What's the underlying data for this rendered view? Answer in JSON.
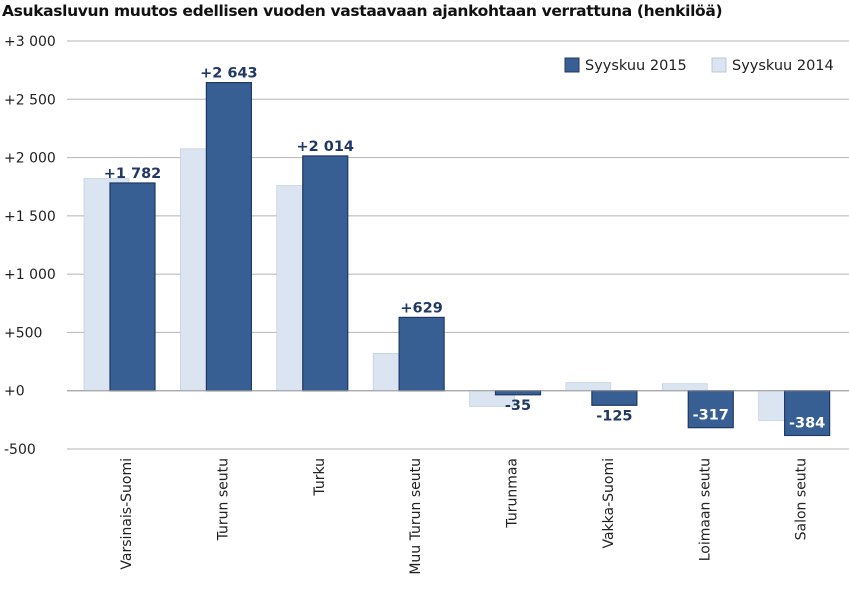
{
  "chart_data": {
    "type": "bar",
    "title": "Asukasluvun muutos edellisen vuoden vastaavaan ajankohtaan verrattuna (henkilöä)",
    "xlabel": "",
    "ylabel": "",
    "ylim": [
      -500,
      3000
    ],
    "yticks": [
      -500,
      0,
      500,
      1000,
      1500,
      2000,
      2500,
      3000
    ],
    "ytick_labels": [
      "-500",
      "+0",
      "+500",
      "+1 000",
      "+1 500",
      "+2 000",
      "+2 500",
      "+3 000"
    ],
    "categories": [
      "Varsinais-Suomi",
      "Turun seutu",
      "Turku",
      "Muu Turun seutu",
      "Turunmaa",
      "Vakka-Suomi",
      "Loimaan seutu",
      "Salon seutu"
    ],
    "series": [
      {
        "name": "Syyskuu 2014",
        "color": "#dbe5f1",
        "stroke": "#b8c8dc",
        "values": [
          1820,
          2075,
          1760,
          320,
          -135,
          70,
          60,
          -255
        ]
      },
      {
        "name": "Syyskuu 2015",
        "color": "#375f94",
        "stroke": "#1f3864",
        "values": [
          1782,
          2643,
          2014,
          629,
          -35,
          -125,
          -317,
          -384
        ],
        "data_labels": [
          "+1 782",
          "+2 643",
          "+2 014",
          "+629",
          "-35",
          "-125",
          "-317",
          "-384"
        ]
      }
    ],
    "legend": {
      "position": "top-right",
      "order": [
        "Syyskuu 2015",
        "Syyskuu 2014"
      ]
    },
    "grid": true
  }
}
